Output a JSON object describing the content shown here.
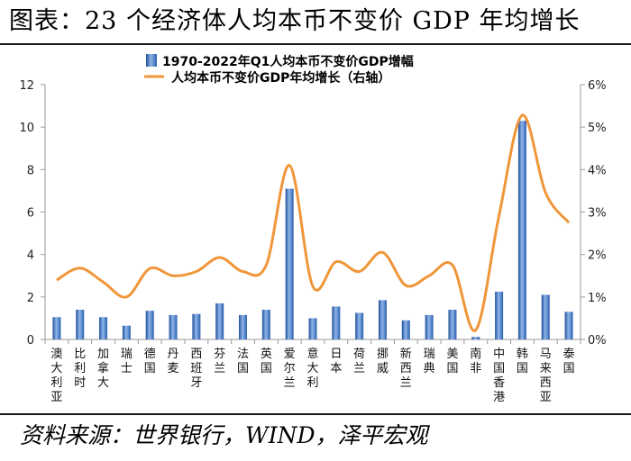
{
  "title": "图表：23 个经济体人均本币不变价 GDP 年均增长",
  "source": "资料来源：世界银行，WIND，泽平宏观",
  "chart_data": {
    "type": "bar+line",
    "categories": [
      "澳大利亚",
      "比利时",
      "加拿大",
      "瑞士",
      "德国",
      "丹麦",
      "西班牙",
      "芬兰",
      "法国",
      "英国",
      "爱尔兰",
      "意大利",
      "日本",
      "荷兰",
      "挪威",
      "新西兰",
      "瑞典",
      "美国",
      "南非",
      "中国香港",
      "韩国",
      "马来西亚",
      "泰国"
    ],
    "series": [
      {
        "name": "1970-2022年Q1人均本币不变价GDP增幅",
        "type": "bar",
        "axis": "left",
        "values": [
          1.05,
          1.4,
          1.05,
          0.65,
          1.35,
          1.15,
          1.2,
          1.7,
          1.15,
          1.4,
          7.1,
          1.0,
          1.55,
          1.25,
          1.85,
          0.9,
          1.15,
          1.4,
          0.12,
          2.25,
          10.3,
          2.1,
          1.3
        ]
      },
      {
        "name": "人均本币不变价GDP年均增长（右轴）",
        "type": "line",
        "axis": "right",
        "color": "#f0963a",
        "values": [
          1.4,
          1.68,
          1.35,
          1.0,
          1.67,
          1.5,
          1.6,
          1.93,
          1.6,
          1.75,
          4.1,
          1.25,
          1.83,
          1.6,
          2.05,
          1.27,
          1.5,
          1.75,
          0.22,
          2.92,
          5.28,
          3.45,
          2.75
        ]
      }
    ],
    "y_left": {
      "min": 0,
      "max": 12,
      "ticks": [
        "0",
        "2",
        "4",
        "6",
        "8",
        "10",
        "12"
      ]
    },
    "y_right": {
      "min": 0,
      "max": 6,
      "ticks": [
        "0%",
        "1%",
        "2%",
        "3%",
        "4%",
        "5%",
        "6%"
      ]
    },
    "legend_position": "top-center",
    "bar_color": "#3a73c2",
    "grid": false
  }
}
